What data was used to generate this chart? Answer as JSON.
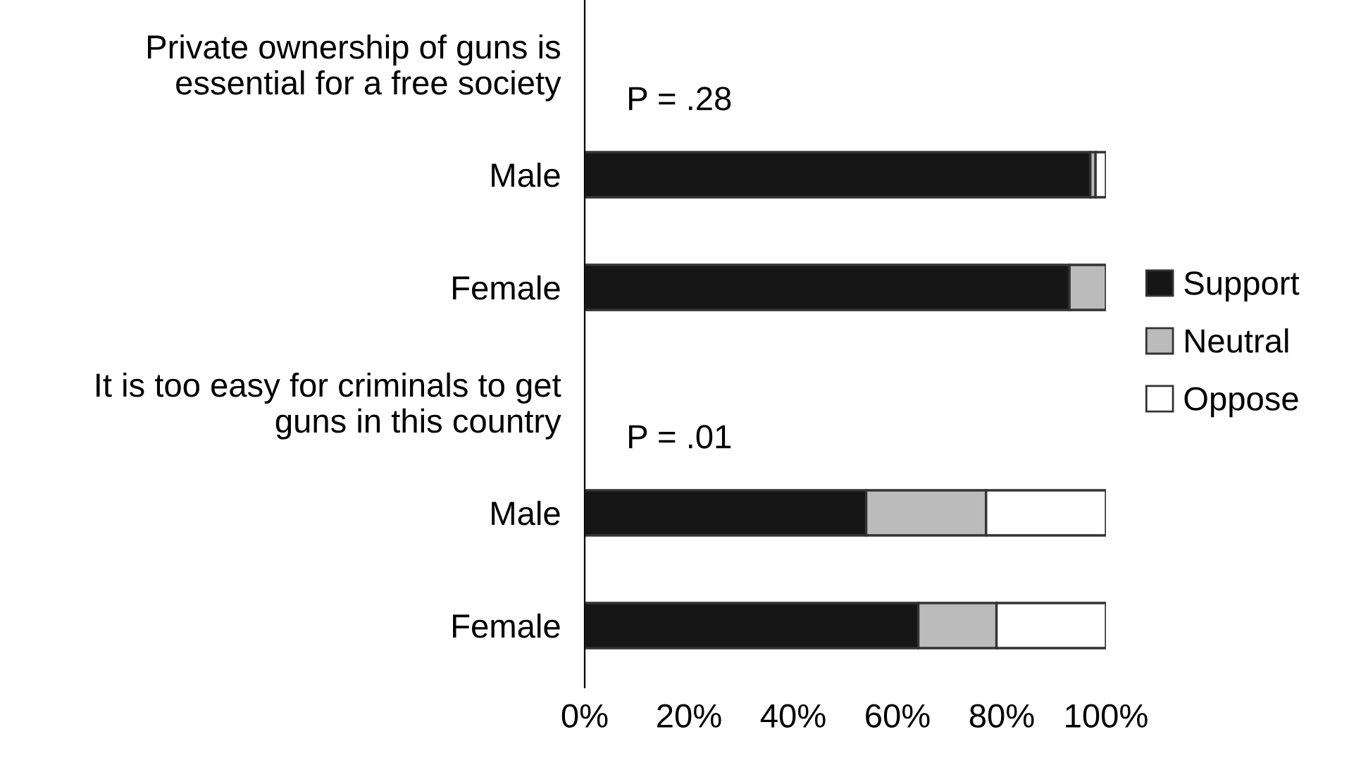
{
  "chart_data": {
    "type": "bar",
    "orientation": "horizontal",
    "stacked": true,
    "categories": [
      "Private ownership of guns is\nessential for a free society",
      "Male",
      "Female",
      "It is too easy for criminals to get\nguns in this country",
      "Male",
      "Female"
    ],
    "series": [
      {
        "name": "Support",
        "color": "#161616",
        "values": [
          null,
          97,
          93,
          null,
          54,
          64
        ]
      },
      {
        "name": "Neutral",
        "color": "#bbbbbb",
        "values": [
          null,
          1,
          7,
          null,
          23,
          15
        ]
      },
      {
        "name": "Oppose",
        "color": "#ffffff",
        "values": [
          null,
          2,
          null,
          null,
          23,
          21
        ]
      }
    ],
    "xlim": [
      0,
      100
    ],
    "xticks": [
      {
        "value": 0,
        "label": "0%"
      },
      {
        "value": 20,
        "label": "20%"
      },
      {
        "value": 40,
        "label": "40%"
      },
      {
        "value": 60,
        "label": "60%"
      },
      {
        "value": 80,
        "label": "80%"
      },
      {
        "value": 100,
        "label": "100%"
      }
    ],
    "annotations": [
      "P = .28",
      "P = .01"
    ],
    "legend": "right",
    "grid": false
  }
}
